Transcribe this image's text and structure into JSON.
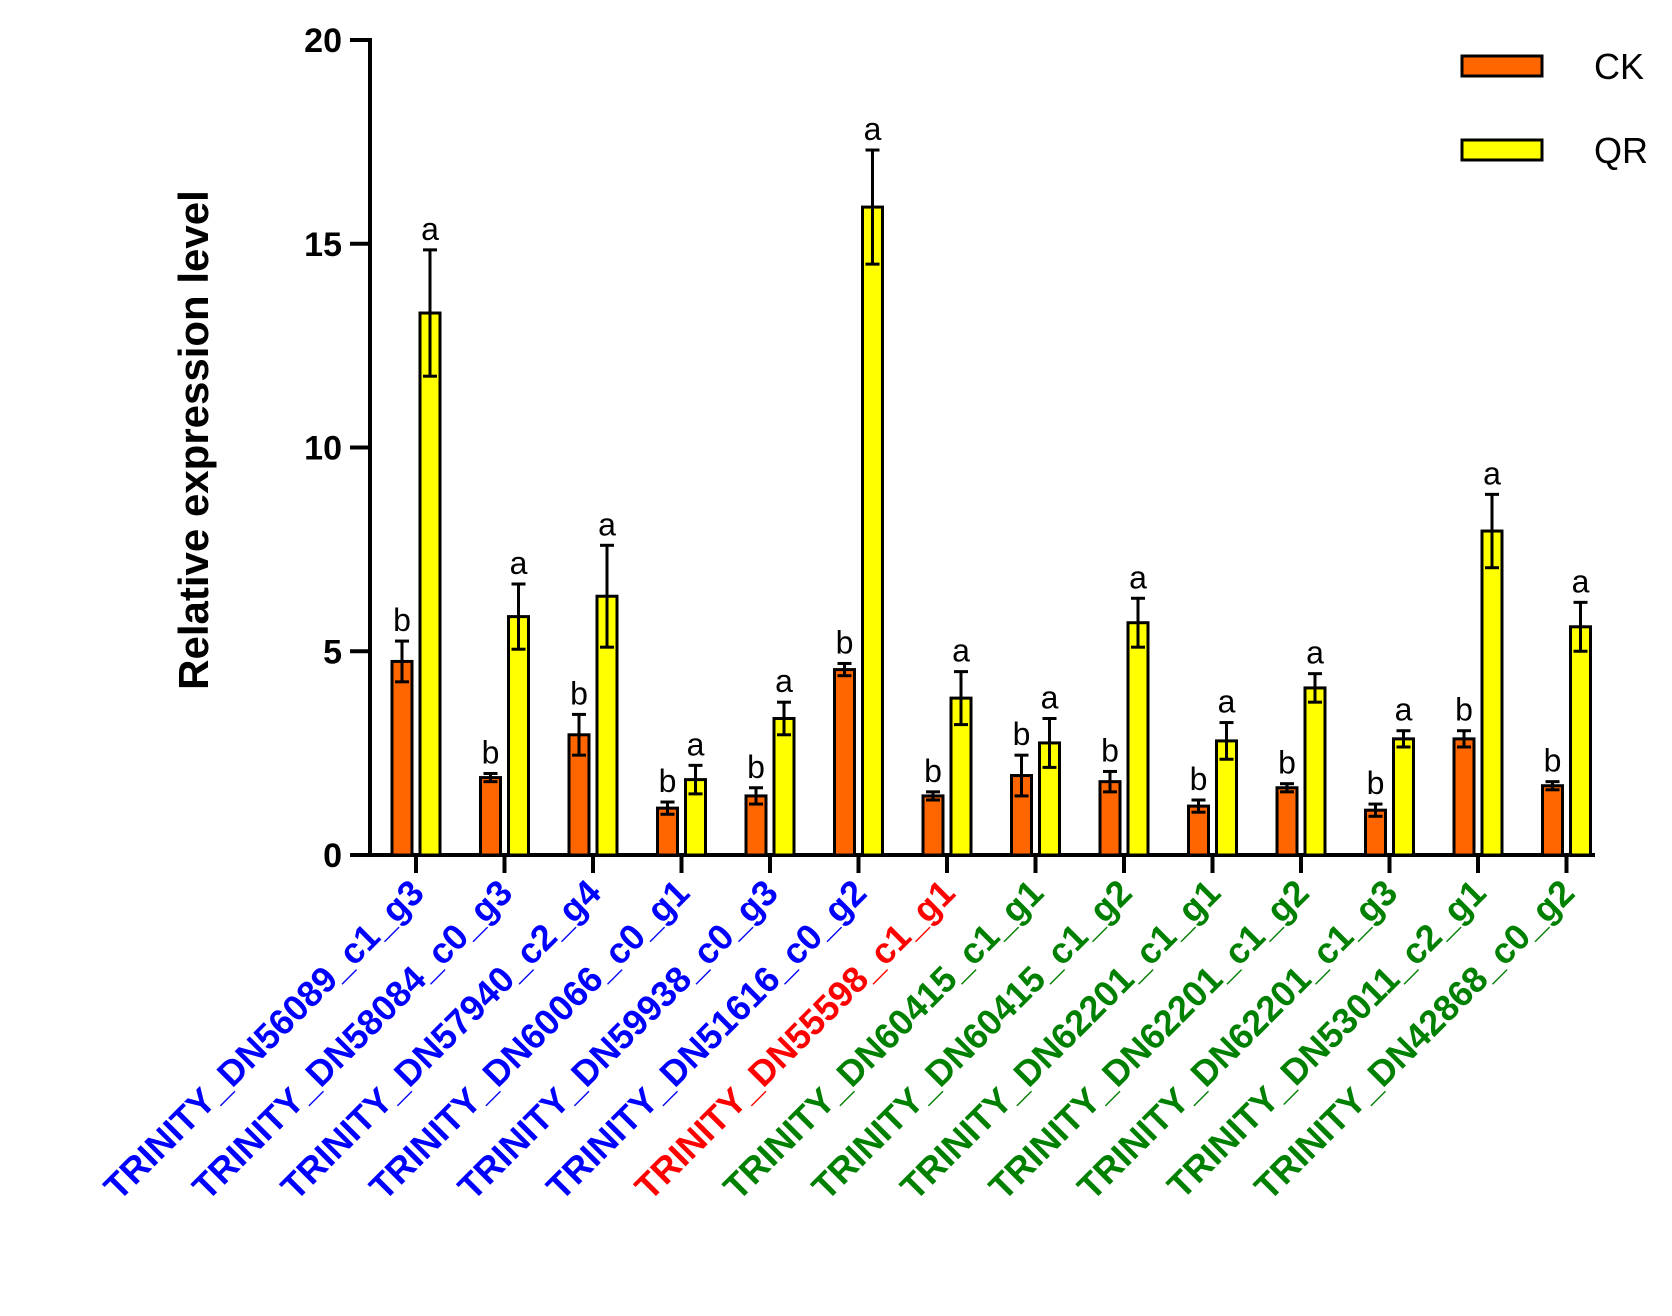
{
  "chart_data": {
    "type": "bar",
    "ylabel": "Relative expression level",
    "xlabel": "",
    "ylim": [
      0,
      20
    ],
    "yticks": [
      0,
      5,
      10,
      15,
      20
    ],
    "grid": false,
    "legend_position": "top-right",
    "categories": [
      {
        "prefix": "TRINITY_",
        "suffix": "DN56089_c1_g3",
        "color": "#0000ff",
        "prefix_color": "#0000ff"
      },
      {
        "prefix": "TRINITY_",
        "suffix": "DN58084_c0_g3",
        "color": "#0000ff",
        "prefix_color": "#0000ff"
      },
      {
        "prefix": "TRINITY_",
        "suffix": "DN57940_c2_g4",
        "color": "#0000ff",
        "prefix_color": "#0000ff"
      },
      {
        "prefix": "TRINITY_",
        "suffix": "DN60066_c0_g1",
        "color": "#0000ff",
        "prefix_color": "#0000ff"
      },
      {
        "prefix": "TRINITY_",
        "suffix": "DN59938_c0_g3",
        "color": "#0000ff",
        "prefix_color": "#0000ff"
      },
      {
        "prefix": "TRINITY_",
        "suffix": "DN51616_c0_g2",
        "color": "#0000ff",
        "prefix_color": "#0000ff"
      },
      {
        "prefix": "TRINITY_",
        "suffix": "DN55598_c1_g1",
        "color": "#ff0000",
        "prefix_color": "#ff0000"
      },
      {
        "prefix": "TRINITY_",
        "suffix": "DN60415_c1_g1",
        "color": "#008000",
        "prefix_color": "#008000"
      },
      {
        "prefix": "TRINITY_",
        "suffix": "DN60415_c1_g2",
        "color": "#008000",
        "prefix_color": "#008000"
      },
      {
        "prefix": "TRINITY_",
        "suffix": "DN62201_c1_g1",
        "color": "#008000",
        "prefix_color": "#008000"
      },
      {
        "prefix": "TRINITY_",
        "suffix": "DN62201_c1_g2",
        "color": "#008000",
        "prefix_color": "#008000"
      },
      {
        "prefix": "TRINITY_",
        "suffix": "DN62201_c1_g3",
        "color": "#008000",
        "prefix_color": "#008000"
      },
      {
        "prefix": "TRINITY_",
        "suffix": "DN53011_c2_g1",
        "color": "#008000",
        "prefix_color": "#008000"
      },
      {
        "prefix": "TRINITY_",
        "suffix": "DN42868_c0_g2",
        "color": "#008000",
        "prefix_color": "#008000"
      }
    ],
    "series": [
      {
        "name": "CK",
        "color": "#ff6600",
        "values": [
          4.75,
          1.9,
          2.95,
          1.15,
          1.45,
          4.55,
          1.45,
          1.95,
          1.8,
          1.2,
          1.65,
          1.1,
          2.85,
          1.7
        ],
        "errors": [
          0.5,
          0.1,
          0.5,
          0.15,
          0.2,
          0.15,
          0.1,
          0.5,
          0.25,
          0.15,
          0.1,
          0.15,
          0.2,
          0.1
        ],
        "sig": [
          "b",
          "b",
          "b",
          "b",
          "b",
          "b",
          "b",
          "b",
          "b",
          "b",
          "b",
          "b",
          "b",
          "b"
        ]
      },
      {
        "name": "QR",
        "color": "#ffff00",
        "values": [
          13.3,
          5.85,
          6.35,
          1.85,
          3.35,
          15.9,
          3.85,
          2.75,
          5.7,
          2.8,
          4.1,
          2.85,
          7.95,
          5.6
        ],
        "errors": [
          1.55,
          0.8,
          1.25,
          0.35,
          0.4,
          1.4,
          0.65,
          0.6,
          0.6,
          0.45,
          0.35,
          0.2,
          0.9,
          0.6
        ],
        "sig": [
          "a",
          "a",
          "a",
          "a",
          "a",
          "a",
          "a",
          "a",
          "a",
          "a",
          "a",
          "a",
          "a",
          "a"
        ]
      }
    ]
  }
}
